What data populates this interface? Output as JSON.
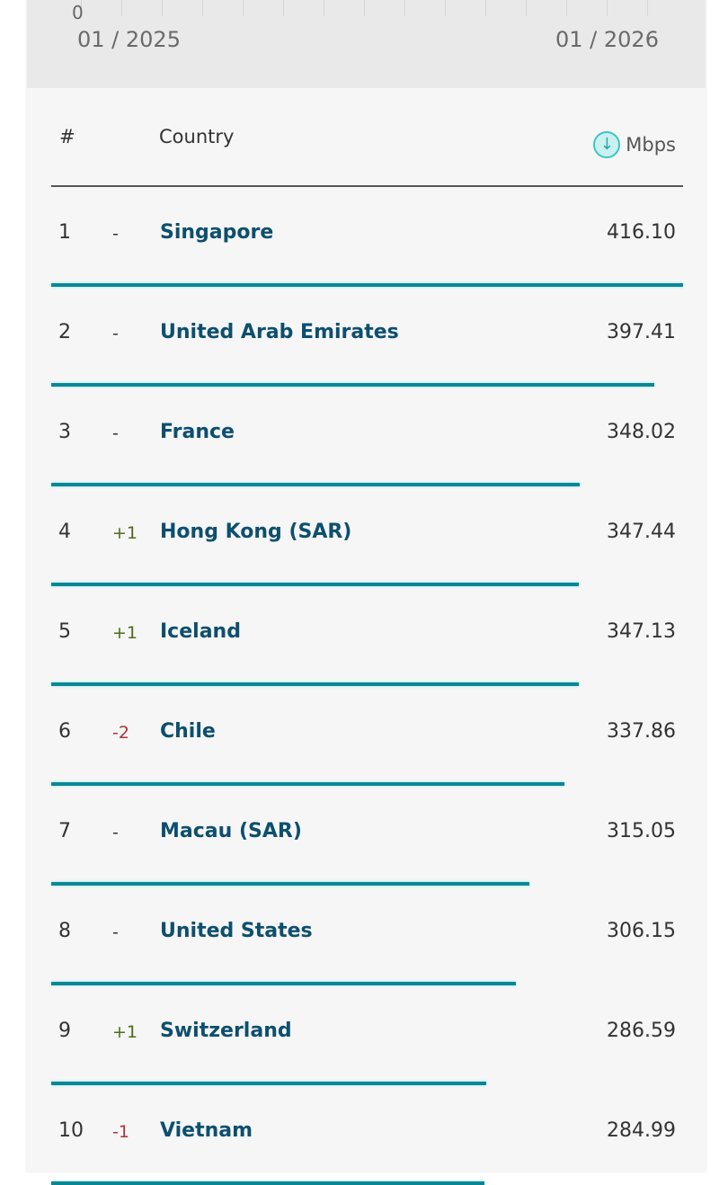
{
  "chart_top": {
    "y_tick": "0",
    "x_start": "01 / 2025",
    "x_end": "01 / 2026"
  },
  "table": {
    "headers": {
      "rank": "#",
      "country": "Country",
      "unit": "Mbps"
    },
    "unit_icon": "download-arrow-circle-icon",
    "bar_color": "#0a8794",
    "rows": [
      {
        "rank": "1",
        "change": "-",
        "country": "Singapore",
        "value": 416.1,
        "display": "416.10"
      },
      {
        "rank": "2",
        "change": "-",
        "country": "United Arab Emirates",
        "value": 397.41,
        "display": "397.41"
      },
      {
        "rank": "3",
        "change": "-",
        "country": "France",
        "value": 348.02,
        "display": "348.02"
      },
      {
        "rank": "4",
        "change": "+1",
        "country": "Hong Kong (SAR)",
        "value": 347.44,
        "display": "347.44"
      },
      {
        "rank": "5",
        "change": "+1",
        "country": "Iceland",
        "value": 347.13,
        "display": "347.13"
      },
      {
        "rank": "6",
        "change": "-2",
        "country": "Chile",
        "value": 337.86,
        "display": "337.86"
      },
      {
        "rank": "7",
        "change": "-",
        "country": "Macau (SAR)",
        "value": 315.05,
        "display": "315.05"
      },
      {
        "rank": "8",
        "change": "-",
        "country": "United States",
        "value": 306.15,
        "display": "306.15"
      },
      {
        "rank": "9",
        "change": "+1",
        "country": "Switzerland",
        "value": 286.59,
        "display": "286.59"
      },
      {
        "rank": "10",
        "change": "-1",
        "country": "Vietnam",
        "value": 284.99,
        "display": "284.99"
      }
    ]
  }
}
